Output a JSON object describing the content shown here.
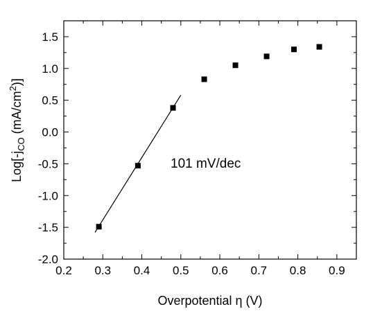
{
  "chart_data": {
    "type": "scatter",
    "x_label_main": "Overpotential ",
    "x_label_symbol": "η",
    "x_label_unit": " (V)",
    "y_label_prefix": "Log[-j",
    "y_label_sub": "CO",
    "y_label_mid": " (mA/cm",
    "y_label_sup": "2",
    "y_label_end": ")]",
    "xlim": [
      0.2,
      0.95
    ],
    "ylim": [
      -2.0,
      1.75
    ],
    "x_ticks": [
      "0.2",
      "0.3",
      "0.4",
      "0.5",
      "0.6",
      "0.7",
      "0.8",
      "0.9"
    ],
    "y_ticks": [
      "-2.0",
      "-1.5",
      "-1.0",
      "-0.5",
      "0.0",
      "0.5",
      "1.0",
      "1.5"
    ],
    "series": [
      {
        "marker": "square",
        "x": [
          0.29,
          0.39,
          0.48,
          0.56,
          0.64,
          0.72,
          0.79,
          0.855
        ],
        "y": [
          -1.49,
          -0.53,
          0.38,
          0.83,
          1.05,
          1.19,
          1.3,
          1.34
        ]
      }
    ],
    "fit_line": {
      "x": [
        0.28,
        0.5
      ],
      "y": [
        -1.58,
        0.58
      ]
    },
    "annotation": "101 mV/dec",
    "grid": false
  }
}
